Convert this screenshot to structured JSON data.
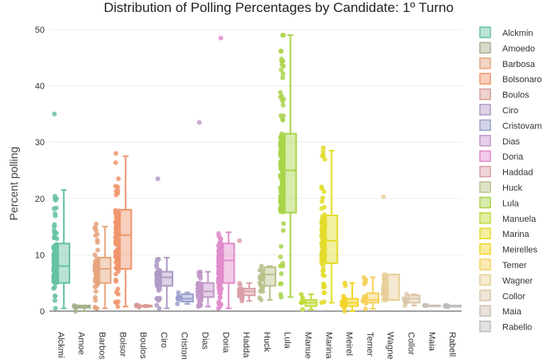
{
  "chart_data": {
    "type": "box",
    "title": "Distribution of Polling Percentages by Candidate: 1º Turno",
    "xlabel": "",
    "ylabel": "Percent polling",
    "ylim": [
      0,
      50
    ],
    "yticks": [
      0,
      10,
      20,
      30,
      40,
      50
    ],
    "grid": true,
    "legend_position": "right",
    "boxpoints": "all",
    "categories": [
      "Alckmin",
      "Amoedo",
      "Barbosa",
      "Bolsonaro",
      "Boulos",
      "Ciro",
      "Cristovam",
      "Dias",
      "Doria",
      "Haddad",
      "Huck",
      "Lula",
      "Manuela",
      "Marina",
      "Meirelles",
      "Temer",
      "Wagner",
      "Collor",
      "Maia",
      "Rabello"
    ],
    "tick_labels": [
      "Alckmi",
      "Amoe",
      "Barbos",
      "Bolsor",
      "Boulos",
      "Ciro",
      "Criston",
      "Dias",
      "Doria",
      "Hadda",
      "Huck",
      "Lula",
      "Manue",
      "Marina",
      "Meirel",
      "Temer",
      "Wagne",
      "Collor",
      "Maia",
      "Rabell"
    ],
    "series": [
      {
        "name": "Alckmin",
        "color": "#66c2a5",
        "q1": 5,
        "median": 8,
        "q3": 12,
        "lower_fence": 0.5,
        "upper_fence": 21.5,
        "points_min": 0.5,
        "points_max": 35
      },
      {
        "name": "Amoedo",
        "color": "#a6b08b",
        "q1": 0.6,
        "median": 0.8,
        "q3": 1,
        "lower_fence": 0,
        "upper_fence": 1,
        "points_min": 0,
        "points_max": 1
      },
      {
        "name": "Barbosa",
        "color": "#e5a57c",
        "q1": 5,
        "median": 7.5,
        "q3": 9.5,
        "lower_fence": 0.5,
        "upper_fence": 15,
        "points_min": 0.5,
        "points_max": 15.5
      },
      {
        "name": "Bolsonaro",
        "color": "#f0956c",
        "q1": 7.5,
        "median": 13.5,
        "q3": 18,
        "lower_fence": 0.8,
        "upper_fence": 27.5,
        "points_min": 0.8,
        "points_max": 28
      },
      {
        "name": "Boulos",
        "color": "#d99b95",
        "q1": 0.8,
        "median": 1,
        "q3": 1,
        "lower_fence": 0.7,
        "upper_fence": 1.1,
        "points_min": 0.7,
        "points_max": 1.1
      },
      {
        "name": "Ciro",
        "color": "#b09bc5",
        "q1": 4.5,
        "median": 6,
        "q3": 7,
        "lower_fence": 0.5,
        "upper_fence": 9.5,
        "points_min": 0.5,
        "points_max": 23.5
      },
      {
        "name": "Cristovam",
        "color": "#9aa0cb",
        "q1": 1.7,
        "median": 2.2,
        "q3": 3,
        "lower_fence": 1.3,
        "upper_fence": 3.3,
        "points_min": 1.3,
        "points_max": 3.3
      },
      {
        "name": "Dias",
        "color": "#c398c9",
        "q1": 2.5,
        "median": 3.5,
        "q3": 5,
        "lower_fence": 0.8,
        "upper_fence": 7,
        "points_min": 0.8,
        "points_max": 33.5
      },
      {
        "name": "Doria",
        "color": "#e08ccb",
        "q1": 5,
        "median": 9,
        "q3": 12,
        "lower_fence": 0.5,
        "upper_fence": 14,
        "points_min": 0.5,
        "points_max": 48.5
      },
      {
        "name": "Haddad",
        "color": "#d9a0a8",
        "q1": 2.8,
        "median": 3.5,
        "q3": 4,
        "lower_fence": 1.8,
        "upper_fence": 5,
        "points_min": 1.8,
        "points_max": 12.5
      },
      {
        "name": "Huck",
        "color": "#b9c18a",
        "q1": 4.5,
        "median": 6.5,
        "q3": 7.8,
        "lower_fence": 2,
        "upper_fence": 8,
        "points_min": 2,
        "points_max": 8
      },
      {
        "name": "Lula",
        "color": "#a9d44a",
        "q1": 17.5,
        "median": 25,
        "q3": 31.5,
        "lower_fence": 2.5,
        "upper_fence": 49,
        "points_min": 2.5,
        "points_max": 49
      },
      {
        "name": "Manuela",
        "color": "#c2d93a",
        "q1": 0.9,
        "median": 1.5,
        "q3": 2,
        "lower_fence": 0.3,
        "upper_fence": 3,
        "points_min": 0.3,
        "points_max": 3
      },
      {
        "name": "Marina",
        "color": "#e2dc2a",
        "q1": 8.5,
        "median": 12.5,
        "q3": 17,
        "lower_fence": 1.5,
        "upper_fence": 28.5,
        "points_min": 1.5,
        "points_max": 29
      },
      {
        "name": "Meirelles",
        "color": "#f2d428",
        "q1": 0.9,
        "median": 1.5,
        "q3": 2.2,
        "lower_fence": 0,
        "upper_fence": 5,
        "points_min": 0,
        "points_max": 5
      },
      {
        "name": "Temer",
        "color": "#f5d15a",
        "q1": 1.5,
        "median": 2,
        "q3": 3.2,
        "lower_fence": 0.4,
        "upper_fence": 6,
        "points_min": 0.4,
        "points_max": 6
      },
      {
        "name": "Wagner",
        "color": "#e8cf9a",
        "q1": 2,
        "median": 2,
        "q3": 6.5,
        "lower_fence": 2,
        "upper_fence": 6.5,
        "points_min": 2,
        "points_max": 20.3
      },
      {
        "name": "Collor",
        "color": "#dcc8a9",
        "q1": 1.5,
        "median": 2.2,
        "q3": 2.8,
        "lower_fence": 1,
        "upper_fence": 3,
        "points_min": 1,
        "points_max": 3
      },
      {
        "name": "Maia",
        "color": "#ccc0b3",
        "q1": 1,
        "median": 1,
        "q3": 1,
        "lower_fence": 1,
        "upper_fence": 1,
        "points_min": 1,
        "points_max": 1
      },
      {
        "name": "Rabello",
        "color": "#bdbdbd",
        "q1": 0.8,
        "median": 1,
        "q3": 1,
        "lower_fence": 0.8,
        "upper_fence": 1,
        "points_min": 0.8,
        "points_max": 1
      }
    ]
  }
}
